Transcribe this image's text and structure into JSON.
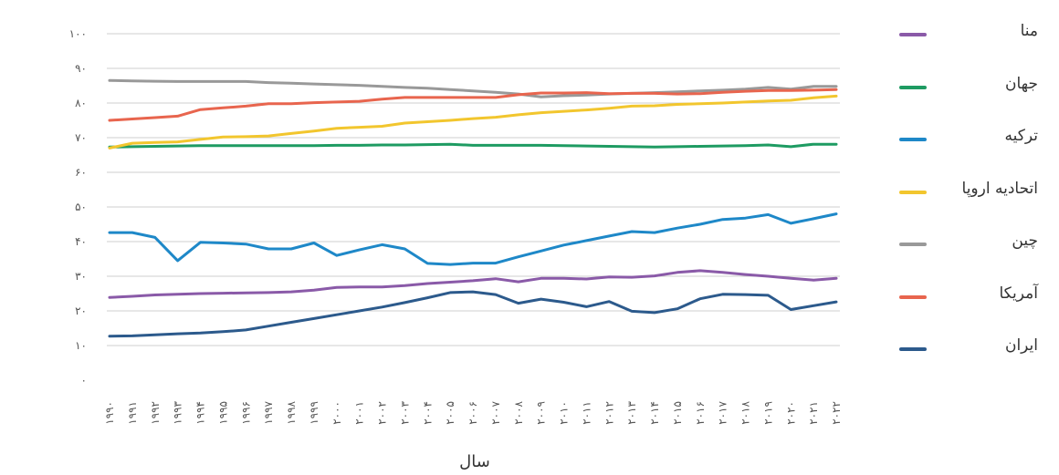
{
  "chart_data": {
    "type": "line",
    "xlabel": "سال",
    "ylabel": "",
    "ylim": [
      0,
      100
    ],
    "yticks": [
      0,
      10,
      20,
      30,
      40,
      50,
      60,
      70,
      80,
      90,
      100
    ],
    "ytick_labels": [
      "۰",
      "۱۰",
      "۲۰",
      "۳۰",
      "۴۰",
      "۵۰",
      "۶۰",
      "۷۰",
      "۸۰",
      "۹۰",
      "۱۰۰"
    ],
    "x": [
      1990,
      1991,
      1992,
      1993,
      1994,
      1995,
      1996,
      1997,
      1998,
      1999,
      2000,
      2001,
      2002,
      2003,
      2004,
      2005,
      2006,
      2007,
      2008,
      2009,
      2010,
      2011,
      2012,
      2013,
      2014,
      2015,
      2016,
      2017,
      2018,
      2019,
      2020,
      2021,
      2022
    ],
    "x_labels": [
      "۱۹۹۰",
      "۱۹۹۱",
      "۱۹۹۲",
      "۱۹۹۳",
      "۱۹۹۴",
      "۱۹۹۵",
      "۱۹۹۶",
      "۱۹۹۷",
      "۱۹۹۸",
      "۱۹۹۹",
      "۲۰۰۰",
      "۲۰۰۱",
      "۲۰۰۲",
      "۲۰۰۳",
      "۲۰۰۴",
      "۲۰۰۵",
      "۲۰۰۶",
      "۲۰۰۷",
      "۲۰۰۸",
      "۲۰۰۹",
      "۲۰۱۰",
      "۲۰۱۱",
      "۲۰۱۲",
      "۲۰۱۳",
      "۲۰۱۴",
      "۲۰۱۵",
      "۲۰۱۶",
      "۲۰۱۷",
      "۲۰۱۸",
      "۲۰۱۹",
      "۲۰۲۰",
      "۲۰۲۱",
      "۲۰۲۲"
    ],
    "grid": true,
    "legend_position": "right",
    "series": [
      {
        "name": "منا",
        "color": "#8a5aa8",
        "values": [
          23.9,
          24.2,
          24.6,
          24.8,
          25.0,
          25.1,
          25.2,
          25.3,
          25.5,
          26.0,
          26.8,
          26.9,
          26.9,
          27.3,
          27.9,
          28.3,
          28.7,
          29.3,
          28.4,
          29.4,
          29.4,
          29.2,
          29.8,
          29.7,
          30.1,
          31.1,
          31.6,
          31.1,
          30.5,
          30.0,
          29.4,
          28.9,
          29.4
        ]
      },
      {
        "name": "جهان",
        "color": "#1e9b62",
        "values": [
          67.3,
          67.4,
          67.5,
          67.6,
          67.7,
          67.7,
          67.7,
          67.7,
          67.7,
          67.7,
          67.8,
          67.8,
          67.9,
          67.9,
          68.0,
          68.1,
          67.8,
          67.8,
          67.8,
          67.8,
          67.7,
          67.6,
          67.5,
          67.4,
          67.3,
          67.4,
          67.5,
          67.6,
          67.7,
          67.9,
          67.4,
          68.1,
          68.1
        ]
      },
      {
        "name": "ترکیه",
        "color": "#1e88c8",
        "values": [
          42.6,
          42.6,
          41.2,
          34.5,
          39.8,
          39.6,
          39.3,
          37.9,
          37.9,
          39.6,
          36.0,
          37.6,
          39.1,
          37.9,
          33.7,
          33.4,
          33.8,
          33.8,
          35.6,
          37.3,
          39.0,
          40.3,
          41.6,
          42.9,
          42.6,
          43.9,
          45.0,
          46.4,
          46.8,
          47.8,
          45.3,
          46.6,
          48.0
        ]
      },
      {
        "name": "اتحادیه اروپا",
        "color": "#f2c62e",
        "values": [
          67.0,
          68.4,
          68.6,
          68.8,
          69.5,
          70.2,
          70.3,
          70.5,
          71.2,
          71.9,
          72.7,
          73.0,
          73.3,
          74.2,
          74.6,
          75.0,
          75.5,
          75.9,
          76.6,
          77.2,
          77.6,
          78.0,
          78.5,
          79.1,
          79.2,
          79.6,
          79.8,
          80.0,
          80.3,
          80.6,
          80.8,
          81.5,
          82.0
        ]
      },
      {
        "name": "چین",
        "color": "#999999",
        "values": [
          86.5,
          86.4,
          86.3,
          86.2,
          86.2,
          86.2,
          86.2,
          85.9,
          85.7,
          85.5,
          85.3,
          85.1,
          84.8,
          84.5,
          84.3,
          83.9,
          83.5,
          83.1,
          82.6,
          81.8,
          82.1,
          82.3,
          82.6,
          82.8,
          83.0,
          83.2,
          83.5,
          83.7,
          84.0,
          84.5,
          84.0,
          84.8,
          84.8
        ]
      },
      {
        "name": "آمریکا",
        "color": "#e8654e",
        "values": [
          75.0,
          75.4,
          75.8,
          76.2,
          78.1,
          78.6,
          79.1,
          79.8,
          79.8,
          80.1,
          80.3,
          80.5,
          81.1,
          81.6,
          81.6,
          81.6,
          81.6,
          81.6,
          82.4,
          82.9,
          82.9,
          83.0,
          82.7,
          82.8,
          82.8,
          82.6,
          82.7,
          83.1,
          83.4,
          83.6,
          83.6,
          83.7,
          83.9
        ]
      },
      {
        "name": "ایران",
        "color": "#2c5a8c",
        "values": [
          12.7,
          12.8,
          13.1,
          13.4,
          13.6,
          14.0,
          14.5,
          15.6,
          16.7,
          17.8,
          18.9,
          20.0,
          21.1,
          22.4,
          23.8,
          25.3,
          25.5,
          24.7,
          22.2,
          23.4,
          22.5,
          21.2,
          22.7,
          19.9,
          19.5,
          20.6,
          23.5,
          24.8,
          24.7,
          24.5,
          20.4,
          21.5,
          22.6
        ]
      }
    ]
  }
}
